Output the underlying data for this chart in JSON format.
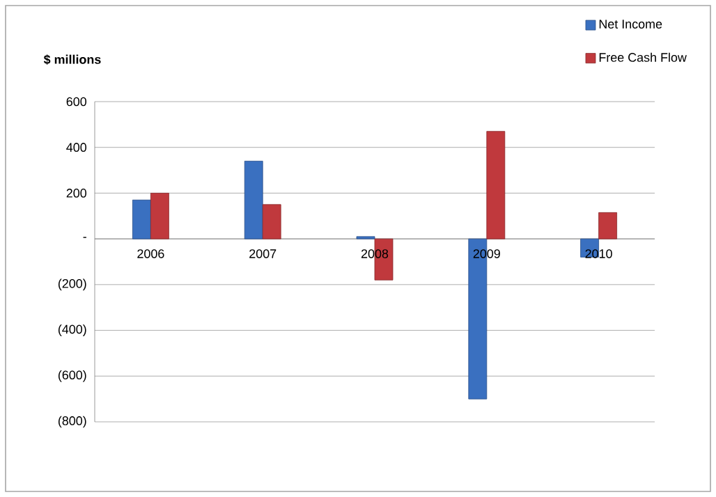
{
  "chart_data": {
    "type": "bar",
    "ylabel": "$ millions",
    "categories": [
      "2006",
      "2007",
      "2008",
      "2009",
      "2010"
    ],
    "series": [
      {
        "name": "Net Income",
        "color": "#3a70c0",
        "values": [
          170,
          340,
          10,
          -700,
          -80
        ]
      },
      {
        "name": "Free Cash Flow",
        "color": "#c0393d",
        "values": [
          200,
          150,
          -180,
          470,
          115
        ]
      }
    ],
    "ylim": [
      -800,
      600
    ],
    "yticks": [
      600,
      400,
      200,
      {
        "value": 0,
        "label": "-"
      },
      {
        "value": -200,
        "label": "(200)"
      },
      {
        "value": -400,
        "label": "(400)"
      },
      {
        "value": -600,
        "label": "(600)"
      },
      {
        "value": -800,
        "label": "(800)"
      }
    ],
    "grid": "y",
    "legend": "top right"
  }
}
